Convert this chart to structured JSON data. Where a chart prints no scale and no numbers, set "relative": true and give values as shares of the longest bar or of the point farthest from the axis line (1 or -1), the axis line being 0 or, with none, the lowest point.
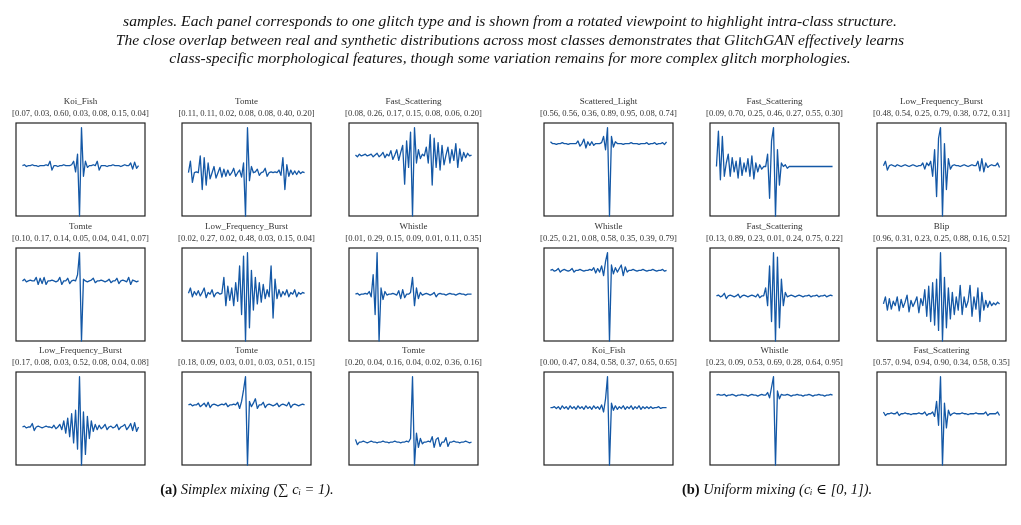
{
  "chart_data": [
    {
      "type": "line",
      "title": "Koi_Fish",
      "subtitle": "[0.07, 0.03, 0.60, 0.03, 0.08, 0.15, 0.04]",
      "relative": true,
      "color": "#1458a6",
      "categories": [
        null,
        null,
        null,
        null,
        null,
        null,
        null,
        null,
        null,
        null,
        null,
        null,
        null,
        null,
        null,
        null,
        null,
        null,
        null,
        null,
        null,
        null,
        null,
        null,
        null,
        null,
        null,
        null,
        null,
        null,
        null,
        null,
        null,
        null,
        null,
        null,
        null,
        null,
        null,
        null,
        null,
        null,
        null,
        null,
        null,
        null,
        null,
        null,
        null,
        null,
        null,
        null,
        null,
        null,
        null,
        null,
        null,
        null,
        null,
        null
      ],
      "values": [
        0.57,
        0.58,
        0.56,
        0.57,
        0.57,
        0.58,
        0.57,
        0.57,
        0.56,
        0.57,
        0.57,
        0.57,
        0.58,
        0.57,
        0.62,
        0.52,
        0.57,
        0.57,
        0.56,
        0.57,
        0.57,
        0.58,
        0.57,
        0.57,
        0.57,
        0.58,
        0.62,
        0.5,
        0.7,
        0.0,
        1.0,
        0.45,
        0.62,
        0.55,
        0.57,
        0.57,
        0.58,
        0.57,
        0.62,
        0.52,
        0.57,
        0.57,
        0.57,
        0.56,
        0.57,
        0.57,
        0.58,
        0.57,
        0.57,
        0.57,
        0.56,
        0.57,
        0.58,
        0.57,
        0.57,
        0.6,
        0.53,
        0.61,
        0.54,
        0.57
      ]
    },
    {
      "type": "line",
      "title": "Tomte",
      "subtitle": "[0.11, 0.11, 0.02, 0.08, 0.08, 0.40, 0.20]",
      "relative": true,
      "color": "#1458a6",
      "categories": [
        null,
        null,
        null,
        null,
        null,
        null,
        null,
        null,
        null,
        null,
        null,
        null,
        null,
        null,
        null,
        null,
        null,
        null,
        null,
        null,
        null,
        null,
        null,
        null,
        null,
        null,
        null,
        null,
        null,
        null,
        null,
        null,
        null,
        null,
        null,
        null,
        null,
        null,
        null,
        null,
        null,
        null,
        null,
        null,
        null,
        null,
        null,
        null,
        null,
        null,
        null,
        null,
        null,
        null,
        null,
        null,
        null,
        null,
        null,
        null
      ],
      "values": [
        0.49,
        0.62,
        0.38,
        0.49,
        0.5,
        0.49,
        0.68,
        0.3,
        0.66,
        0.35,
        0.6,
        0.42,
        0.49,
        0.56,
        0.43,
        0.49,
        0.55,
        0.44,
        0.53,
        0.45,
        0.52,
        0.46,
        0.49,
        0.54,
        0.45,
        0.49,
        0.52,
        0.44,
        0.6,
        0.0,
        1.0,
        0.4,
        0.56,
        0.49,
        0.5,
        0.53,
        0.46,
        0.49,
        0.5,
        0.54,
        0.45,
        0.49,
        0.5,
        0.49,
        0.5,
        0.49,
        0.52,
        0.46,
        0.66,
        0.3,
        0.58,
        0.45,
        0.52,
        0.47,
        0.51,
        0.47,
        0.51,
        0.48,
        0.5,
        0.49
      ]
    },
    {
      "type": "line",
      "title": "Fast_Scattering",
      "subtitle": "[0.08, 0.26, 0.17, 0.15, 0.08, 0.06, 0.20]",
      "relative": true,
      "color": "#1458a6",
      "categories": [
        null,
        null,
        null,
        null,
        null,
        null,
        null,
        null,
        null,
        null,
        null,
        null,
        null,
        null,
        null,
        null,
        null,
        null,
        null,
        null,
        null,
        null,
        null,
        null,
        null,
        null,
        null,
        null,
        null,
        null,
        null,
        null,
        null,
        null,
        null,
        null,
        null,
        null,
        null,
        null,
        null,
        null,
        null,
        null,
        null,
        null,
        null,
        null,
        null,
        null,
        null,
        null,
        null,
        null,
        null,
        null,
        null,
        null,
        null,
        null
      ],
      "values": [
        0.69,
        0.67,
        0.7,
        0.68,
        0.69,
        0.7,
        0.68,
        0.69,
        0.7,
        0.67,
        0.69,
        0.71,
        0.67,
        0.69,
        0.72,
        0.66,
        0.7,
        0.68,
        0.74,
        0.64,
        0.69,
        0.75,
        0.63,
        0.72,
        0.8,
        0.36,
        0.85,
        0.55,
        0.95,
        0.0,
        1.0,
        0.6,
        0.75,
        0.65,
        0.7,
        0.68,
        0.78,
        0.6,
        0.92,
        0.35,
        0.88,
        0.55,
        0.83,
        0.52,
        0.8,
        0.58,
        0.69,
        0.78,
        0.6,
        0.75,
        0.63,
        0.82,
        0.55,
        0.76,
        0.62,
        0.72,
        0.66,
        0.71,
        0.68,
        0.69
      ]
    },
    {
      "type": "line",
      "title": "Tomte",
      "subtitle": "[0.10, 0.17, 0.14, 0.05, 0.04, 0.41, 0.07]",
      "relative": true,
      "color": "#1458a6",
      "categories": [
        null,
        null,
        null,
        null,
        null,
        null,
        null,
        null,
        null,
        null,
        null,
        null,
        null,
        null,
        null,
        null,
        null,
        null,
        null,
        null,
        null,
        null,
        null,
        null,
        null,
        null,
        null,
        null,
        null,
        null,
        null,
        null,
        null,
        null,
        null,
        null,
        null,
        null,
        null,
        null,
        null,
        null,
        null,
        null,
        null,
        null,
        null,
        null,
        null,
        null,
        null,
        null,
        null,
        null,
        null,
        null,
        null,
        null,
        null,
        null
      ],
      "values": [
        0.68,
        0.7,
        0.67,
        0.68,
        0.69,
        0.68,
        0.68,
        0.72,
        0.64,
        0.71,
        0.65,
        0.72,
        0.64,
        0.68,
        0.68,
        0.69,
        0.68,
        0.67,
        0.68,
        0.72,
        0.64,
        0.68,
        0.68,
        0.71,
        0.65,
        0.68,
        0.69,
        0.68,
        0.75,
        1.0,
        0.0,
        0.7,
        0.68,
        0.67,
        0.68,
        0.69,
        0.71,
        0.66,
        0.68,
        0.68,
        0.69,
        0.68,
        0.67,
        0.68,
        0.7,
        0.66,
        0.68,
        0.68,
        0.71,
        0.65,
        0.68,
        0.69,
        0.68,
        0.67,
        0.72,
        0.64,
        0.69,
        0.68,
        0.67,
        0.68
      ]
    },
    {
      "type": "line",
      "title": "Low_Frequency_Burst",
      "subtitle": "[0.02, 0.27, 0.02, 0.48, 0.03, 0.15, 0.04]",
      "relative": true,
      "color": "#1458a6",
      "categories": [
        null,
        null,
        null,
        null,
        null,
        null,
        null,
        null,
        null,
        null,
        null,
        null,
        null,
        null,
        null,
        null,
        null,
        null,
        null,
        null,
        null,
        null,
        null,
        null,
        null,
        null,
        null,
        null,
        null,
        null,
        null,
        null,
        null,
        null,
        null,
        null,
        null,
        null,
        null,
        null,
        null,
        null,
        null,
        null,
        null,
        null,
        null,
        null,
        null,
        null,
        null,
        null,
        null,
        null,
        null,
        null,
        null,
        null,
        null,
        null
      ],
      "values": [
        0.54,
        0.6,
        0.5,
        0.56,
        0.52,
        0.57,
        0.51,
        0.55,
        0.6,
        0.49,
        0.55,
        0.53,
        0.58,
        0.5,
        0.54,
        0.55,
        0.53,
        0.54,
        0.72,
        0.4,
        0.62,
        0.46,
        0.6,
        0.4,
        0.66,
        0.45,
        0.85,
        0.3,
        0.96,
        0.0,
        1.0,
        0.15,
        0.8,
        0.35,
        0.72,
        0.42,
        0.66,
        0.44,
        0.64,
        0.48,
        0.58,
        0.5,
        0.85,
        0.26,
        0.7,
        0.48,
        0.58,
        0.5,
        0.56,
        0.52,
        0.58,
        0.5,
        0.55,
        0.53,
        0.58,
        0.5,
        0.55,
        0.53,
        0.55,
        0.54
      ]
    },
    {
      "type": "line",
      "title": "Whistle",
      "subtitle": "[0.01, 0.29, 0.15, 0.09, 0.01, 0.11, 0.35]",
      "relative": true,
      "color": "#1458a6",
      "categories": [
        null,
        null,
        null,
        null,
        null,
        null,
        null,
        null,
        null,
        null,
        null,
        null,
        null,
        null,
        null,
        null,
        null,
        null,
        null,
        null,
        null,
        null,
        null,
        null,
        null,
        null,
        null,
        null,
        null,
        null,
        null,
        null,
        null,
        null,
        null,
        null,
        null,
        null,
        null,
        null,
        null,
        null,
        null,
        null,
        null,
        null,
        null,
        null,
        null,
        null,
        null,
        null,
        null,
        null,
        null,
        null,
        null,
        null,
        null,
        null
      ],
      "values": [
        0.53,
        0.54,
        0.52,
        0.53,
        0.53,
        0.54,
        0.53,
        0.56,
        0.5,
        0.75,
        0.3,
        1.0,
        0.0,
        0.6,
        0.47,
        0.56,
        0.52,
        0.53,
        0.53,
        0.54,
        0.53,
        0.52,
        0.57,
        0.48,
        0.58,
        0.49,
        0.53,
        0.53,
        0.55,
        0.72,
        0.4,
        0.6,
        0.48,
        0.55,
        0.52,
        0.53,
        0.54,
        0.53,
        0.52,
        0.53,
        0.55,
        0.5,
        0.53,
        0.54,
        0.53,
        0.53,
        0.52,
        0.53,
        0.54,
        0.53,
        0.53,
        0.52,
        0.53,
        0.54,
        0.53,
        0.53,
        0.52,
        0.53,
        0.53,
        0.53
      ]
    },
    {
      "type": "line",
      "title": "Low_Frequency_Burst",
      "subtitle": "[0.17, 0.08, 0.03, 0.52, 0.08, 0.04, 0.08]",
      "relative": true,
      "color": "#1458a6",
      "categories": [
        null,
        null,
        null,
        null,
        null,
        null,
        null,
        null,
        null,
        null,
        null,
        null,
        null,
        null,
        null,
        null,
        null,
        null,
        null,
        null,
        null,
        null,
        null,
        null,
        null,
        null,
        null,
        null,
        null,
        null,
        null,
        null,
        null,
        null,
        null,
        null,
        null,
        null,
        null,
        null,
        null,
        null,
        null,
        null,
        null,
        null,
        null,
        null,
        null,
        null,
        null,
        null,
        null,
        null,
        null,
        null,
        null,
        null,
        null,
        null
      ],
      "values": [
        0.43,
        0.44,
        0.42,
        0.43,
        0.43,
        0.47,
        0.39,
        0.43,
        0.44,
        0.43,
        0.42,
        0.43,
        0.44,
        0.43,
        0.43,
        0.42,
        0.45,
        0.41,
        0.43,
        0.46,
        0.4,
        0.5,
        0.36,
        0.53,
        0.32,
        0.58,
        0.25,
        0.62,
        0.18,
        1.0,
        0.0,
        0.6,
        0.12,
        0.55,
        0.3,
        0.5,
        0.38,
        0.46,
        0.4,
        0.45,
        0.41,
        0.43,
        0.46,
        0.4,
        0.43,
        0.44,
        0.42,
        0.43,
        0.46,
        0.4,
        0.43,
        0.44,
        0.46,
        0.4,
        0.43,
        0.47,
        0.39,
        0.48,
        0.38,
        0.43
      ]
    },
    {
      "type": "line",
      "title": "Tomte",
      "subtitle": "[0.18, 0.09, 0.03, 0.01, 0.03, 0.51, 0.15]",
      "relative": true,
      "color": "#1458a6",
      "categories": [
        null,
        null,
        null,
        null,
        null,
        null,
        null,
        null,
        null,
        null,
        null,
        null,
        null,
        null,
        null,
        null,
        null,
        null,
        null,
        null,
        null,
        null,
        null,
        null,
        null,
        null,
        null,
        null,
        null,
        null,
        null,
        null,
        null,
        null,
        null,
        null,
        null,
        null,
        null,
        null,
        null,
        null,
        null,
        null,
        null,
        null,
        null,
        null,
        null,
        null,
        null,
        null,
        null,
        null,
        null,
        null,
        null,
        null,
        null,
        null
      ],
      "values": [
        0.68,
        0.69,
        0.67,
        0.68,
        0.68,
        0.7,
        0.66,
        0.68,
        0.7,
        0.66,
        0.71,
        0.65,
        0.68,
        0.69,
        0.68,
        0.67,
        0.68,
        0.69,
        0.68,
        0.7,
        0.66,
        0.68,
        0.68,
        0.69,
        0.68,
        0.71,
        0.64,
        0.72,
        0.85,
        1.0,
        0.0,
        0.72,
        0.66,
        0.7,
        0.75,
        0.64,
        0.68,
        0.68,
        0.71,
        0.65,
        0.68,
        0.69,
        0.68,
        0.67,
        0.68,
        0.7,
        0.66,
        0.68,
        0.69,
        0.68,
        0.67,
        0.71,
        0.65,
        0.68,
        0.69,
        0.68,
        0.67,
        0.68,
        0.69,
        0.68
      ]
    },
    {
      "type": "line",
      "title": "Tomte",
      "subtitle": "[0.20, 0.04, 0.16, 0.04, 0.02, 0.36, 0.16]",
      "relative": true,
      "color": "#1458a6",
      "categories": [
        null,
        null,
        null,
        null,
        null,
        null,
        null,
        null,
        null,
        null,
        null,
        null,
        null,
        null,
        null,
        null,
        null,
        null,
        null,
        null,
        null,
        null,
        null,
        null,
        null,
        null,
        null,
        null,
        null,
        null,
        null,
        null,
        null,
        null,
        null,
        null,
        null,
        null,
        null,
        null,
        null,
        null,
        null,
        null,
        null,
        null,
        null,
        null,
        null,
        null,
        null,
        null,
        null,
        null,
        null,
        null,
        null,
        null,
        null,
        null
      ],
      "values": [
        0.29,
        0.23,
        0.26,
        0.26,
        0.27,
        0.26,
        0.25,
        0.26,
        0.27,
        0.26,
        0.26,
        0.25,
        0.26,
        0.26,
        0.27,
        0.26,
        0.26,
        0.25,
        0.26,
        0.26,
        0.27,
        0.26,
        0.26,
        0.25,
        0.26,
        0.26,
        0.27,
        0.26,
        0.3,
        1.0,
        0.0,
        0.36,
        0.2,
        0.3,
        0.24,
        0.26,
        0.26,
        0.27,
        0.26,
        0.32,
        0.2,
        0.29,
        0.31,
        0.21,
        0.26,
        0.26,
        0.31,
        0.21,
        0.26,
        0.26,
        0.27,
        0.26,
        0.26,
        0.25,
        0.26,
        0.26,
        0.27,
        0.26,
        0.25,
        0.26
      ]
    },
    {
      "type": "line",
      "title": "Scattered_Light",
      "subtitle": "[0.56, 0.56, 0.36, 0.89, 0.95, 0.08, 0.74]",
      "relative": true,
      "color": "#1458a6",
      "categories": [
        null,
        null,
        null,
        null,
        null,
        null,
        null,
        null,
        null,
        null,
        null,
        null,
        null,
        null,
        null,
        null,
        null,
        null,
        null,
        null,
        null,
        null,
        null,
        null,
        null,
        null,
        null,
        null,
        null,
        null,
        null,
        null,
        null,
        null,
        null,
        null,
        null,
        null,
        null,
        null,
        null,
        null,
        null,
        null,
        null,
        null,
        null,
        null,
        null,
        null,
        null,
        null,
        null,
        null,
        null,
        null,
        null,
        null,
        null,
        null
      ],
      "values": [
        0.84,
        0.82,
        0.82,
        0.81,
        0.82,
        0.82,
        0.83,
        0.82,
        0.82,
        0.81,
        0.82,
        0.82,
        0.82,
        0.82,
        0.85,
        0.79,
        0.82,
        0.87,
        0.77,
        0.84,
        0.8,
        0.84,
        0.8,
        0.82,
        0.82,
        0.82,
        0.83,
        0.9,
        0.75,
        1.0,
        0.0,
        0.9,
        0.78,
        0.84,
        0.82,
        0.82,
        0.82,
        0.81,
        0.82,
        0.82,
        0.82,
        0.83,
        0.82,
        0.82,
        0.82,
        0.81,
        0.82,
        0.82,
        0.82,
        0.83,
        0.81,
        0.82,
        0.82,
        0.83,
        0.81,
        0.82,
        0.82,
        0.83,
        0.81,
        0.84
      ]
    },
    {
      "type": "line",
      "title": "Fast_Scattering",
      "subtitle": "[0.09, 0.70, 0.25, 0.46, 0.27, 0.55, 0.30]",
      "relative": true,
      "color": "#1458a6",
      "categories": [
        null,
        null,
        null,
        null,
        null,
        null,
        null,
        null,
        null,
        null,
        null,
        null,
        null,
        null,
        null,
        null,
        null,
        null,
        null,
        null,
        null,
        null,
        null,
        null,
        null,
        null,
        null,
        null,
        null,
        null,
        null,
        null,
        null,
        null,
        null,
        null,
        null,
        null,
        null,
        null,
        null,
        null,
        null,
        null,
        null,
        null,
        null,
        null,
        null,
        null,
        null,
        null,
        null,
        null,
        null,
        null,
        null,
        null,
        null,
        null
      ],
      "values": [
        0.56,
        0.96,
        0.41,
        0.9,
        0.45,
        0.6,
        0.7,
        0.45,
        0.66,
        0.5,
        0.62,
        0.43,
        0.66,
        0.46,
        0.6,
        0.5,
        0.65,
        0.45,
        0.68,
        0.42,
        0.6,
        0.5,
        0.58,
        0.53,
        0.56,
        0.56,
        0.7,
        0.2,
        0.85,
        1.0,
        0.0,
        0.75,
        0.35,
        0.6,
        0.56,
        0.58,
        0.54,
        0.56,
        0.56,
        0.56,
        0.56,
        0.56,
        0.56,
        0.56,
        0.56,
        0.56,
        0.56,
        0.56,
        0.56,
        0.56,
        0.56,
        0.56,
        0.56,
        0.56,
        0.56,
        0.56,
        0.56,
        0.56,
        0.56,
        0.56
      ]
    },
    {
      "type": "line",
      "title": "Low_Frequency_Burst",
      "subtitle": "[0.48, 0.54, 0.25, 0.79, 0.38, 0.72, 0.31]",
      "relative": true,
      "color": "#1458a6",
      "categories": [
        null,
        null,
        null,
        null,
        null,
        null,
        null,
        null,
        null,
        null,
        null,
        null,
        null,
        null,
        null,
        null,
        null,
        null,
        null,
        null,
        null,
        null,
        null,
        null,
        null,
        null,
        null,
        null,
        null,
        null,
        null,
        null,
        null,
        null,
        null,
        null,
        null,
        null,
        null,
        null,
        null,
        null,
        null,
        null,
        null,
        null,
        null,
        null,
        null,
        null,
        null,
        null,
        null,
        null,
        null,
        null,
        null,
        null,
        null,
        null
      ],
      "values": [
        0.57,
        0.62,
        0.52,
        0.57,
        0.58,
        0.57,
        0.56,
        0.58,
        0.57,
        0.56,
        0.57,
        0.58,
        0.57,
        0.56,
        0.57,
        0.58,
        0.57,
        0.56,
        0.57,
        0.57,
        0.6,
        0.53,
        0.6,
        0.57,
        0.62,
        0.45,
        0.75,
        0.22,
        0.88,
        1.0,
        0.0,
        0.82,
        0.3,
        0.65,
        0.53,
        0.57,
        0.58,
        0.57,
        0.57,
        0.56,
        0.57,
        0.58,
        0.57,
        0.56,
        0.57,
        0.58,
        0.57,
        0.57,
        0.62,
        0.51,
        0.65,
        0.5,
        0.6,
        0.55,
        0.57,
        0.58,
        0.57,
        0.57,
        0.6,
        0.55
      ]
    },
    {
      "type": "line",
      "title": "Whistle",
      "subtitle": "[0.25, 0.21, 0.08, 0.58, 0.35, 0.39, 0.79]",
      "relative": true,
      "color": "#1458a6",
      "categories": [
        null,
        null,
        null,
        null,
        null,
        null,
        null,
        null,
        null,
        null,
        null,
        null,
        null,
        null,
        null,
        null,
        null,
        null,
        null,
        null,
        null,
        null,
        null,
        null,
        null,
        null,
        null,
        null,
        null,
        null,
        null,
        null,
        null,
        null,
        null,
        null,
        null,
        null,
        null,
        null,
        null,
        null,
        null,
        null,
        null,
        null,
        null,
        null,
        null,
        null,
        null,
        null,
        null,
        null,
        null,
        null,
        null,
        null,
        null,
        null
      ],
      "values": [
        0.8,
        0.81,
        0.79,
        0.8,
        0.82,
        0.78,
        0.8,
        0.81,
        0.8,
        0.79,
        0.8,
        0.82,
        0.78,
        0.8,
        0.8,
        0.81,
        0.8,
        0.79,
        0.8,
        0.8,
        0.81,
        0.8,
        0.83,
        0.77,
        0.82,
        0.78,
        0.85,
        0.74,
        0.9,
        1.0,
        0.0,
        0.86,
        0.76,
        0.83,
        0.78,
        0.82,
        0.86,
        0.74,
        0.84,
        0.78,
        0.8,
        0.8,
        0.81,
        0.8,
        0.79,
        0.8,
        0.8,
        0.81,
        0.8,
        0.79,
        0.8,
        0.8,
        0.81,
        0.8,
        0.79,
        0.8,
        0.8,
        0.81,
        0.79,
        0.8
      ]
    },
    {
      "type": "line",
      "title": "Fast_Scattering",
      "subtitle": "[0.13, 0.89, 0.23, 0.01, 0.24, 0.75, 0.22]",
      "relative": true,
      "color": "#1458a6",
      "categories": [
        null,
        null,
        null,
        null,
        null,
        null,
        null,
        null,
        null,
        null,
        null,
        null,
        null,
        null,
        null,
        null,
        null,
        null,
        null,
        null,
        null,
        null,
        null,
        null,
        null,
        null,
        null,
        null,
        null,
        null,
        null,
        null,
        null,
        null,
        null,
        null,
        null,
        null,
        null,
        null,
        null,
        null,
        null,
        null,
        null,
        null,
        null,
        null,
        null,
        null,
        null,
        null,
        null,
        null,
        null,
        null,
        null,
        null,
        null,
        null
      ],
      "values": [
        0.51,
        0.52,
        0.5,
        0.51,
        0.54,
        0.48,
        0.51,
        0.52,
        0.51,
        0.5,
        0.51,
        0.53,
        0.49,
        0.51,
        0.52,
        0.51,
        0.5,
        0.51,
        0.52,
        0.51,
        0.5,
        0.53,
        0.49,
        0.51,
        0.51,
        0.6,
        0.4,
        0.85,
        0.22,
        1.0,
        0.0,
        0.95,
        0.15,
        0.7,
        0.4,
        0.55,
        0.5,
        0.51,
        0.52,
        0.51,
        0.5,
        0.51,
        0.52,
        0.51,
        0.5,
        0.51,
        0.51,
        0.52,
        0.5,
        0.51,
        0.51,
        0.52,
        0.5,
        0.51,
        0.51,
        0.52,
        0.5,
        0.51,
        0.52,
        0.51
      ]
    },
    {
      "type": "line",
      "title": "Blip",
      "subtitle": "[0.96, 0.31, 0.23, 0.25, 0.88, 0.16, 0.52]",
      "relative": true,
      "color": "#1458a6",
      "categories": [
        null,
        null,
        null,
        null,
        null,
        null,
        null,
        null,
        null,
        null,
        null,
        null,
        null,
        null,
        null,
        null,
        null,
        null,
        null,
        null,
        null,
        null,
        null,
        null,
        null,
        null,
        null,
        null,
        null,
        null,
        null,
        null,
        null,
        null,
        null,
        null,
        null,
        null,
        null,
        null,
        null,
        null,
        null,
        null,
        null,
        null,
        null,
        null,
        null,
        null,
        null,
        null,
        null,
        null,
        null,
        null,
        null,
        null,
        null,
        null
      ],
      "values": [
        0.42,
        0.5,
        0.35,
        0.48,
        0.36,
        0.45,
        0.4,
        0.5,
        0.34,
        0.47,
        0.38,
        0.44,
        0.52,
        0.33,
        0.46,
        0.39,
        0.44,
        0.5,
        0.32,
        0.48,
        0.4,
        0.58,
        0.28,
        0.62,
        0.22,
        0.66,
        0.18,
        0.7,
        0.12,
        1.0,
        0.0,
        0.72,
        0.15,
        0.6,
        0.25,
        0.55,
        0.3,
        0.5,
        0.35,
        0.63,
        0.3,
        0.5,
        0.38,
        0.45,
        0.63,
        0.28,
        0.5,
        0.36,
        0.6,
        0.22,
        0.55,
        0.35,
        0.46,
        0.38,
        0.45,
        0.4,
        0.43,
        0.41,
        0.44,
        0.42
      ]
    },
    {
      "type": "line",
      "title": "Koi_Fish",
      "subtitle": "[0.00, 0.47, 0.84, 0.58, 0.37, 0.65, 0.65]",
      "relative": true,
      "color": "#1458a6",
      "categories": [
        null,
        null,
        null,
        null,
        null,
        null,
        null,
        null,
        null,
        null,
        null,
        null,
        null,
        null,
        null,
        null,
        null,
        null,
        null,
        null,
        null,
        null,
        null,
        null,
        null,
        null,
        null,
        null,
        null,
        null,
        null,
        null,
        null,
        null,
        null,
        null,
        null,
        null,
        null,
        null,
        null,
        null,
        null,
        null,
        null,
        null,
        null,
        null,
        null,
        null,
        null,
        null,
        null,
        null,
        null,
        null,
        null,
        null,
        null,
        null
      ],
      "values": [
        0.65,
        0.65,
        0.66,
        0.64,
        0.66,
        0.63,
        0.67,
        0.64,
        0.66,
        0.63,
        0.67,
        0.64,
        0.66,
        0.63,
        0.67,
        0.64,
        0.66,
        0.63,
        0.67,
        0.64,
        0.66,
        0.63,
        0.67,
        0.64,
        0.66,
        0.63,
        0.68,
        0.6,
        0.75,
        1.0,
        0.0,
        0.7,
        0.62,
        0.67,
        0.63,
        0.66,
        0.64,
        0.67,
        0.63,
        0.66,
        0.64,
        0.67,
        0.63,
        0.66,
        0.64,
        0.67,
        0.63,
        0.66,
        0.64,
        0.66,
        0.64,
        0.66,
        0.64,
        0.65,
        0.65,
        0.66,
        0.64,
        0.65,
        0.65,
        0.65
      ]
    },
    {
      "type": "line",
      "title": "Whistle",
      "subtitle": "[0.23, 0.09, 0.53, 0.69, 0.28, 0.64, 0.95]",
      "relative": true,
      "color": "#1458a6",
      "categories": [
        null,
        null,
        null,
        null,
        null,
        null,
        null,
        null,
        null,
        null,
        null,
        null,
        null,
        null,
        null,
        null,
        null,
        null,
        null,
        null,
        null,
        null,
        null,
        null,
        null,
        null,
        null,
        null,
        null,
        null,
        null,
        null,
        null,
        null,
        null,
        null,
        null,
        null,
        null,
        null,
        null,
        null,
        null,
        null,
        null,
        null,
        null,
        null,
        null,
        null,
        null,
        null,
        null,
        null,
        null,
        null,
        null,
        null,
        null,
        null
      ],
      "values": [
        0.79,
        0.8,
        0.79,
        0.79,
        0.8,
        0.78,
        0.79,
        0.79,
        0.8,
        0.79,
        0.78,
        0.79,
        0.79,
        0.8,
        0.79,
        0.79,
        0.78,
        0.79,
        0.8,
        0.79,
        0.79,
        0.78,
        0.79,
        0.8,
        0.79,
        0.79,
        0.82,
        0.76,
        0.88,
        1.0,
        0.0,
        0.84,
        0.75,
        0.8,
        0.79,
        0.79,
        0.8,
        0.79,
        0.78,
        0.79,
        0.79,
        0.8,
        0.79,
        0.79,
        0.78,
        0.79,
        0.79,
        0.8,
        0.79,
        0.78,
        0.79,
        0.79,
        0.8,
        0.79,
        0.79,
        0.78,
        0.79,
        0.79,
        0.8,
        0.79
      ]
    },
    {
      "type": "line",
      "title": "Fast_Scattering",
      "subtitle": "[0.57, 0.94, 0.94, 0.90, 0.34, 0.58, 0.35]",
      "relative": true,
      "color": "#1458a6",
      "categories": [
        null,
        null,
        null,
        null,
        null,
        null,
        null,
        null,
        null,
        null,
        null,
        null,
        null,
        null,
        null,
        null,
        null,
        null,
        null,
        null,
        null,
        null,
        null,
        null,
        null,
        null,
        null,
        null,
        null,
        null,
        null,
        null,
        null,
        null,
        null,
        null,
        null,
        null,
        null,
        null,
        null,
        null,
        null,
        null,
        null,
        null,
        null,
        null,
        null,
        null,
        null,
        null,
        null,
        null,
        null,
        null,
        null,
        null,
        null,
        null
      ],
      "values": [
        0.6,
        0.56,
        0.58,
        0.58,
        0.59,
        0.58,
        0.58,
        0.6,
        0.56,
        0.58,
        0.58,
        0.59,
        0.58,
        0.58,
        0.57,
        0.58,
        0.58,
        0.58,
        0.59,
        0.58,
        0.58,
        0.6,
        0.56,
        0.58,
        0.58,
        0.6,
        0.55,
        0.72,
        0.45,
        1.0,
        0.0,
        0.7,
        0.42,
        0.62,
        0.56,
        0.58,
        0.59,
        0.58,
        0.58,
        0.58,
        0.59,
        0.58,
        0.58,
        0.57,
        0.58,
        0.58,
        0.58,
        0.59,
        0.58,
        0.58,
        0.58,
        0.58,
        0.6,
        0.56,
        0.58,
        0.58,
        0.58,
        0.58,
        0.6,
        0.56
      ]
    },
    {
      "type": "other",
      "annotations": [
        "samples. Each panel corresponds to one glitch type and is shown from a rotated viewpoint to highlight intra-class structure.\nThe close overlap between real and synthetic distributions across most classes demonstrates that GlitchGAN effectively learns\nclass-specific morphological features, though some variation remains for more complex glitch morphologies."
      ]
    },
    {
      "type": "other",
      "annotations": [
        "(a) Simplex mixing (∑ cᵢ = 1)."
      ]
    },
    {
      "type": "other",
      "annotations": [
        "(b) Uniform mixing (cᵢ ∈ [0, 1])."
      ]
    }
  ]
}
